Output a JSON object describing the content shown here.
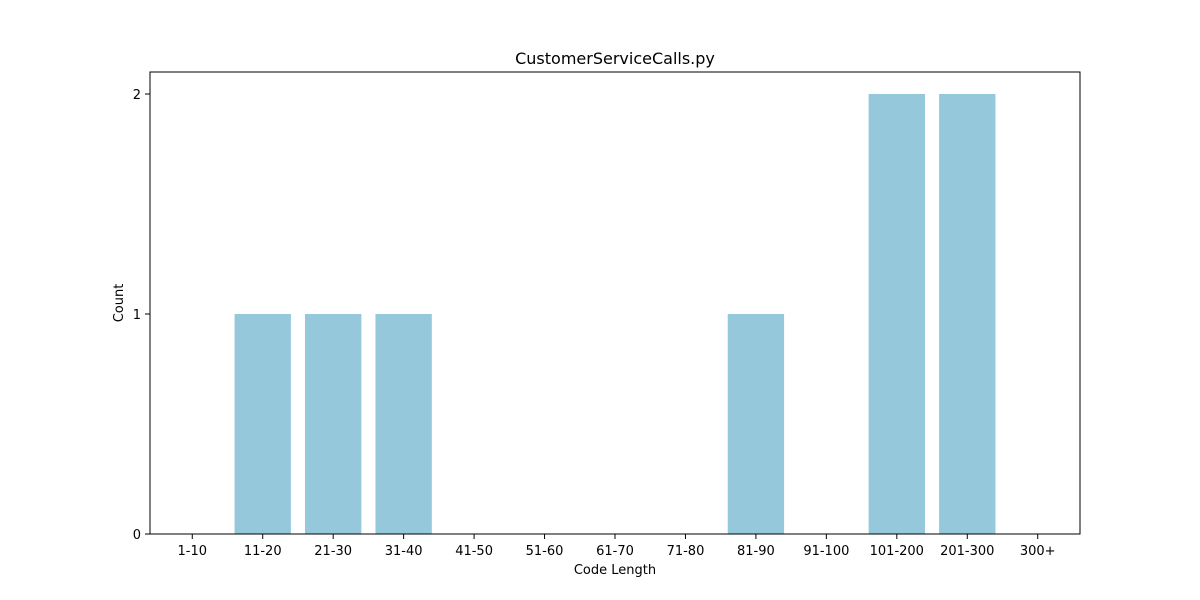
{
  "chart_data": {
    "type": "bar",
    "title": "CustomerServiceCalls.py",
    "xlabel": "Code Length",
    "ylabel": "Count",
    "categories": [
      "1-10",
      "11-20",
      "21-30",
      "31-40",
      "41-50",
      "51-60",
      "61-70",
      "71-80",
      "81-90",
      "91-100",
      "101-200",
      "201-300",
      "300+"
    ],
    "values": [
      0,
      1,
      1,
      1,
      0,
      0,
      0,
      0,
      1,
      0,
      2,
      2,
      0
    ],
    "yticks": [
      0,
      1,
      2
    ],
    "ylim": [
      0,
      2.1
    ],
    "grid": false,
    "legend": "none",
    "bar_color": "#96c8dc"
  }
}
